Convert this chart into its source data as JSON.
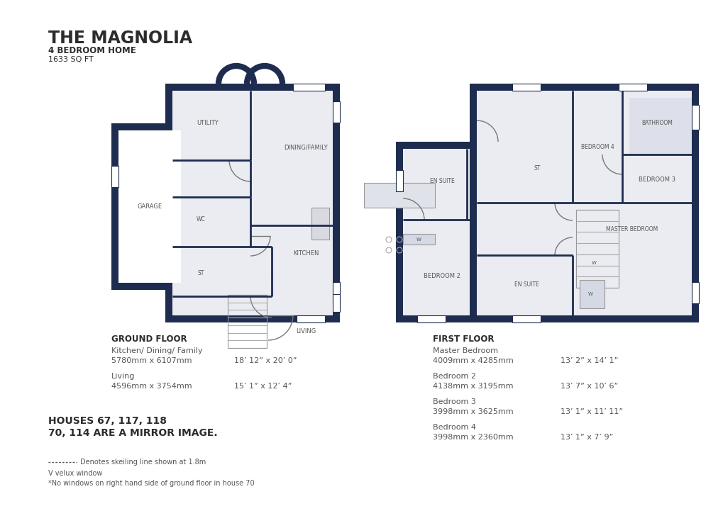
{
  "title": "THE MAGNOLIA",
  "subtitle1": "4 BEDROOM HOME",
  "subtitle2": "1633 SQ FT",
  "bg_color": "#ffffff",
  "wall_color": "#1e2d4f",
  "room_fill": "#eaecf2",
  "light_fill": "#f5f6f8",
  "white_fill": "#ffffff",
  "title_color": "#2c2c2c",
  "text_color": "#555555",
  "label_color": "#555555",
  "ground_floor_label": "GROUND FLOOR",
  "ground_rooms": [
    {
      "name": "Kitchen/ Dining/ Family",
      "mm": "5780mm x 6107mm",
      "ft": "18’ 12” x 20’ 0”"
    },
    {
      "name": "Living",
      "mm": "4596mm x 3754mm",
      "ft": "15’ 1” x 12’ 4”"
    }
  ],
  "first_floor_label": "FIRST FLOOR",
  "first_rooms": [
    {
      "name": "Master Bedroom",
      "mm": "4009mm x 4285mm",
      "ft": "13’ 2” x 14’ 1”"
    },
    {
      "name": "Bedroom 2",
      "mm": "4138mm x 3195mm",
      "ft": "13’ 7” x 10’ 6”"
    },
    {
      "name": "Bedroom 3",
      "mm": "3998mm x 3625mm",
      "ft": "13’ 1” x 11’ 11”"
    },
    {
      "name": "Bedroom 4",
      "mm": "3998mm x 2360mm",
      "ft": "13’ 1” x 7’ 9”"
    }
  ],
  "houses_note1": "HOUSES 67, 117, 118",
  "houses_note2": "70, 114 ARE A MIRROR IMAGE.",
  "legend1": "- - - - - -  Denotes skeiling line shown at 1.8m",
  "legend2": "V velux window",
  "legend3": "*No windows on right hand side of ground floor in house 70"
}
